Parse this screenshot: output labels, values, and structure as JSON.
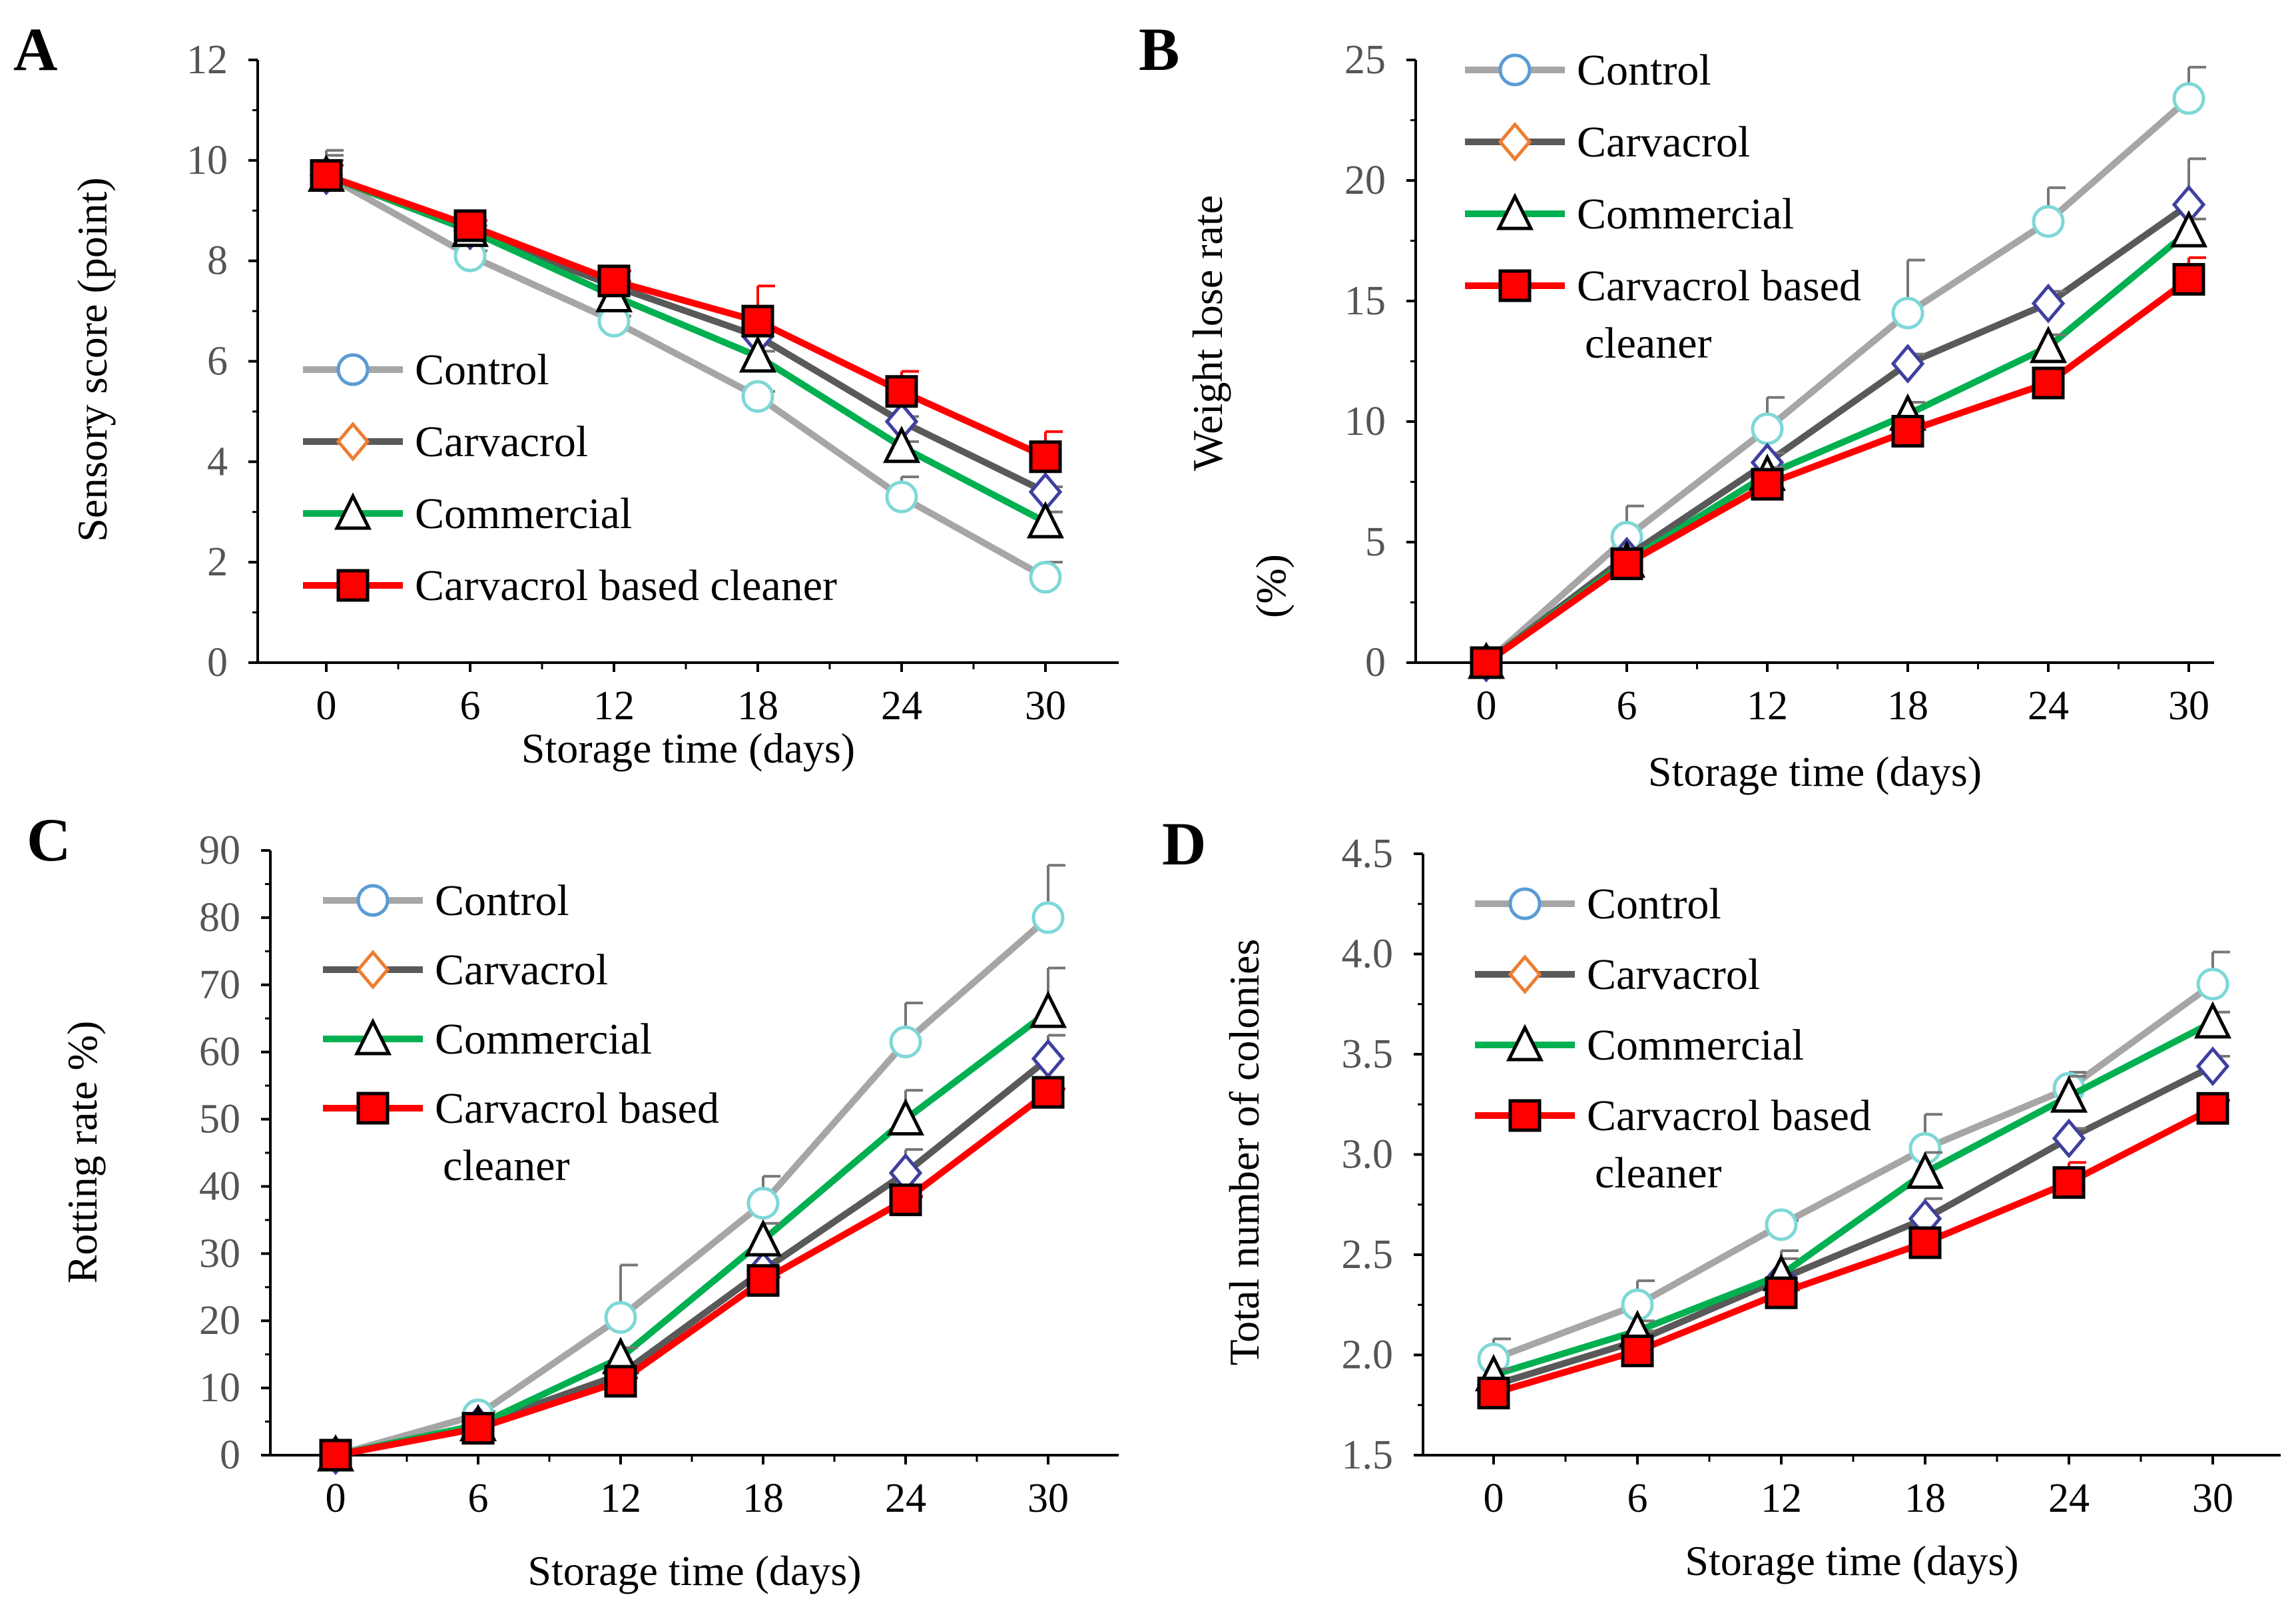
{
  "colors": {
    "control": "#a6a6a6",
    "carvacrol": "#595959",
    "commercial": "#00b050",
    "carvacrol_cleaner": "#ff0000",
    "control_marker": "#5b9bd5",
    "carvacrol_marker": "#ed7d31",
    "carvacrol_marker_plot": "#3f3f9f"
  },
  "chart_data": [
    {
      "id": "A",
      "letter": "A",
      "type": "line",
      "x": [
        0,
        6,
        12,
        18,
        24,
        30
      ],
      "xticks": [
        "0",
        "6",
        "12",
        "18",
        "24",
        "30"
      ],
      "xlabel": "Storage time (days)",
      "ylabel": [
        "Sensory score (point)"
      ],
      "ylim": [
        0,
        12
      ],
      "yticks": [
        "0",
        "2",
        "4",
        "6",
        "8",
        "10",
        "12"
      ],
      "ytick_values": [
        0,
        2,
        4,
        6,
        8,
        10,
        12
      ],
      "legend": [
        "Control",
        "Carvacrol",
        "Commercial",
        [
          "Carvacrol based cleaner"
        ]
      ],
      "series": [
        {
          "name": "Control",
          "values": [
            9.7,
            8.1,
            6.8,
            5.3,
            3.3,
            1.7
          ],
          "errors": [
            0.5,
            0.1,
            0.1,
            0.1,
            0.4,
            0.3
          ]
        },
        {
          "name": "Carvacrol",
          "values": [
            9.7,
            8.6,
            7.5,
            6.5,
            4.8,
            3.4
          ],
          "errors": [
            0.3,
            0.1,
            0.1,
            0.1,
            0.1,
            0.1
          ]
        },
        {
          "name": "Commercial",
          "values": [
            9.7,
            8.6,
            7.3,
            6.1,
            4.3,
            2.8
          ],
          "errors": [
            0.4,
            0.1,
            0.1,
            0.1,
            0.1,
            0.2
          ]
        },
        {
          "name": "Carvacrol based cleaner",
          "values": [
            9.7,
            8.7,
            7.6,
            6.8,
            5.4,
            4.1
          ],
          "errors": [
            0.2,
            0.1,
            0.2,
            0.7,
            0.4,
            0.5
          ]
        }
      ]
    },
    {
      "id": "B",
      "letter": "B",
      "type": "line",
      "x": [
        0,
        6,
        12,
        18,
        24,
        30
      ],
      "xticks": [
        "0",
        "6",
        "12",
        "18",
        "24",
        "30"
      ],
      "xlabel": "Storage time (days)",
      "ylabel": [
        "Weight lose rate",
        "(%)"
      ],
      "ylim": [
        0,
        25
      ],
      "yticks": [
        "0",
        "5",
        "10",
        "15",
        "20",
        "25"
      ],
      "ytick_values": [
        0,
        5,
        10,
        15,
        20,
        25
      ],
      "legend": [
        "Control",
        "Carvacrol",
        "Commercial",
        [
          "Carvacrol based",
          "cleaner"
        ]
      ],
      "series": [
        {
          "name": "Control",
          "values": [
            0,
            5.2,
            9.7,
            14.5,
            18.3,
            23.4
          ],
          "errors": [
            0,
            1.3,
            1.3,
            2.2,
            1.4,
            1.3
          ]
        },
        {
          "name": "Carvacrol",
          "values": [
            0,
            4.4,
            8.3,
            12.4,
            14.9,
            19.0
          ],
          "errors": [
            0,
            0.3,
            0.4,
            0.4,
            0.5,
            1.9
          ]
        },
        {
          "name": "Commercial",
          "values": [
            0,
            4.2,
            7.8,
            10.3,
            13.1,
            17.9
          ],
          "errors": [
            0,
            0.3,
            0.3,
            0.5,
            0.5,
            0.5
          ]
        },
        {
          "name": "Carvacrol based cleaner",
          "values": [
            0,
            4.1,
            7.4,
            9.6,
            11.6,
            15.9
          ],
          "errors": [
            0,
            0.4,
            0.3,
            0.4,
            0.5,
            0.9
          ]
        }
      ]
    },
    {
      "id": "C",
      "letter": "C",
      "type": "line",
      "x": [
        0,
        6,
        12,
        18,
        24,
        30
      ],
      "xticks": [
        "0",
        "6",
        "12",
        "18",
        "24",
        "30"
      ],
      "xlabel": "Storage time (days)",
      "ylabel": [
        "Rotting rate %)"
      ],
      "ylim": [
        0,
        90
      ],
      "yticks": [
        "0",
        "10",
        "20",
        "30",
        "40",
        "50",
        "60",
        "70",
        "80",
        "90"
      ],
      "ytick_values": [
        0,
        10,
        20,
        30,
        40,
        50,
        60,
        70,
        80,
        90
      ],
      "legend": [
        "Control",
        "Carvacrol",
        "Commercial",
        [
          "Carvacrol based",
          "cleaner"
        ]
      ],
      "series": [
        {
          "name": "Control",
          "values": [
            0,
            6,
            20.5,
            37.5,
            61.5,
            80
          ],
          "errors": [
            0.5,
            0.5,
            7.8,
            4.0,
            5.8,
            7.8
          ]
        },
        {
          "name": "Carvacrol",
          "values": [
            0,
            4.5,
            12,
            27.5,
            42,
            59
          ],
          "errors": [
            0.5,
            0.5,
            0.5,
            0.5,
            3.5,
            3.5
          ]
        },
        {
          "name": "Commercial",
          "values": [
            0,
            4.5,
            14.5,
            32,
            50,
            66
          ],
          "errors": [
            0.5,
            0.5,
            1.5,
            2.5,
            4.3,
            6.5
          ]
        },
        {
          "name": "Carvacrol based cleaner",
          "values": [
            0,
            4,
            11,
            26,
            38,
            54
          ],
          "errors": [
            0.5,
            0.5,
            0.5,
            0.5,
            0.5,
            0.5
          ]
        }
      ]
    },
    {
      "id": "D",
      "letter": "D",
      "type": "line",
      "x": [
        0,
        6,
        12,
        18,
        24,
        30
      ],
      "xticks": [
        "0",
        "6",
        "12",
        "18",
        "24",
        "30"
      ],
      "xlabel": "Storage time (days)",
      "ylabel": [
        "Total number of colonies"
      ],
      "ylim": [
        1.5,
        4.5
      ],
      "yticks": [
        "1.5",
        "2.0",
        "2.5",
        "3.0",
        "3.5",
        "4.0",
        "4.5"
      ],
      "ytick_values": [
        1.5,
        2.0,
        2.5,
        3.0,
        3.5,
        4.0,
        4.5
      ],
      "legend": [
        "Control",
        "Carvacrol",
        "Commercial",
        [
          "Carvacrol based",
          "cleaner"
        ]
      ],
      "series": [
        {
          "name": "Control",
          "values": [
            1.98,
            2.25,
            2.65,
            3.03,
            3.33,
            3.85
          ],
          "errors": [
            0.1,
            0.12,
            0.02,
            0.17,
            0.08,
            0.16
          ]
        },
        {
          "name": "Carvacrol",
          "values": [
            1.85,
            2.07,
            2.38,
            2.68,
            3.08,
            3.44
          ],
          "errors": [
            0.03,
            0.05,
            0.1,
            0.1,
            0.05,
            0.05
          ]
        },
        {
          "name": "Commercial",
          "values": [
            1.9,
            2.12,
            2.4,
            2.91,
            3.29,
            3.66
          ],
          "errors": [
            0.03,
            0.05,
            0.12,
            0.1,
            0.1,
            0.05
          ]
        },
        {
          "name": "Carvacrol based cleaner",
          "values": [
            1.81,
            2.02,
            2.31,
            2.56,
            2.86,
            3.23
          ],
          "errors": [
            0.02,
            0.03,
            0.05,
            0.04,
            0.1,
            0.04
          ]
        }
      ]
    }
  ]
}
